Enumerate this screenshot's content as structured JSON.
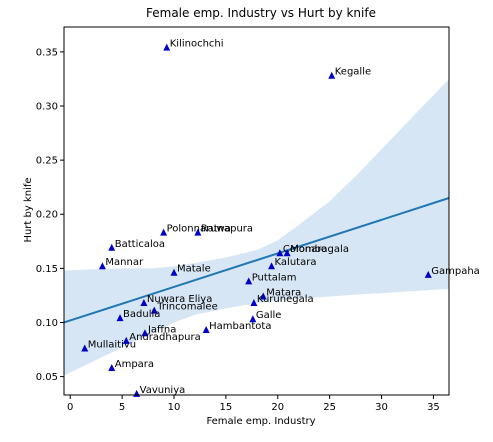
{
  "chart_data": {
    "type": "scatter",
    "title": "Female emp. Industry vs Hurt by knife",
    "xlabel": "Female emp. Industry",
    "ylabel": "Hurt by knife",
    "xlim": [
      -0.6,
      36.5
    ],
    "ylim": [
      0.033,
      0.373
    ],
    "x_ticks": [
      0,
      5,
      10,
      15,
      20,
      25,
      30,
      35
    ],
    "y_ticks": [
      0.05,
      0.1,
      0.15,
      0.2,
      0.25,
      0.3,
      0.35
    ],
    "y_tick_labels": [
      "0.05",
      "0.10",
      "0.15",
      "0.20",
      "0.25",
      "0.30",
      "0.35"
    ],
    "grid": false,
    "colors": {
      "points": "#0000cc",
      "fit_line": "#1f77b4",
      "band": "#c6dbef"
    },
    "points": [
      {
        "label": "Kilinochchi",
        "x": 9.3,
        "y": 0.354
      },
      {
        "label": "Kegalle",
        "x": 25.2,
        "y": 0.328
      },
      {
        "label": "Polonnaruwa",
        "x": 9.0,
        "y": 0.183
      },
      {
        "label": "Ratnapura",
        "x": 12.3,
        "y": 0.183
      },
      {
        "label": "Batticaloa",
        "x": 4.0,
        "y": 0.169
      },
      {
        "label": "Colombo",
        "x": 20.2,
        "y": 0.164
      },
      {
        "label": "Monaragala",
        "x": 20.9,
        "y": 0.164
      },
      {
        "label": "Mannar",
        "x": 3.1,
        "y": 0.152
      },
      {
        "label": "Kalutara",
        "x": 19.4,
        "y": 0.152
      },
      {
        "label": "Matale",
        "x": 10.0,
        "y": 0.146
      },
      {
        "label": "Gampaha",
        "x": 34.5,
        "y": 0.144
      },
      {
        "label": "Puttalam",
        "x": 17.2,
        "y": 0.138
      },
      {
        "label": "Matara",
        "x": 18.6,
        "y": 0.124
      },
      {
        "label": "Nuwara Eliya",
        "x": 7.1,
        "y": 0.118
      },
      {
        "label": "Kurunegala",
        "x": 17.7,
        "y": 0.118
      },
      {
        "label": "Trincomalee",
        "x": 8.1,
        "y": 0.111
      },
      {
        "label": "Badulla",
        "x": 4.8,
        "y": 0.104
      },
      {
        "label": "Galle",
        "x": 17.6,
        "y": 0.103
      },
      {
        "label": "Hambantota",
        "x": 13.1,
        "y": 0.093
      },
      {
        "label": "Jaffna",
        "x": 7.2,
        "y": 0.09
      },
      {
        "label": "Mullaitivu",
        "x": 1.4,
        "y": 0.076
      },
      {
        "label": "Anuradhapura",
        "x": 5.4,
        "y": 0.083
      },
      {
        "label": "Ampara",
        "x": 4.0,
        "y": 0.058
      },
      {
        "label": "Vavuniya",
        "x": 6.4,
        "y": 0.034
      }
    ],
    "fit_line": {
      "x": [
        -0.6,
        36.5
      ],
      "y": [
        0.1,
        0.215
      ]
    },
    "confidence_band": {
      "x": [
        -0.6,
        2,
        5,
        8,
        10,
        12,
        15,
        18,
        20,
        22,
        25,
        28,
        30,
        33,
        36.5
      ],
      "upper": [
        0.148,
        0.149,
        0.15,
        0.15,
        0.152,
        0.155,
        0.16,
        0.167,
        0.176,
        0.19,
        0.212,
        0.24,
        0.26,
        0.29,
        0.325
      ],
      "lower": [
        0.051,
        0.063,
        0.077,
        0.09,
        0.1,
        0.107,
        0.113,
        0.118,
        0.12,
        0.122,
        0.124,
        0.126,
        0.127,
        0.129,
        0.131
      ]
    }
  }
}
